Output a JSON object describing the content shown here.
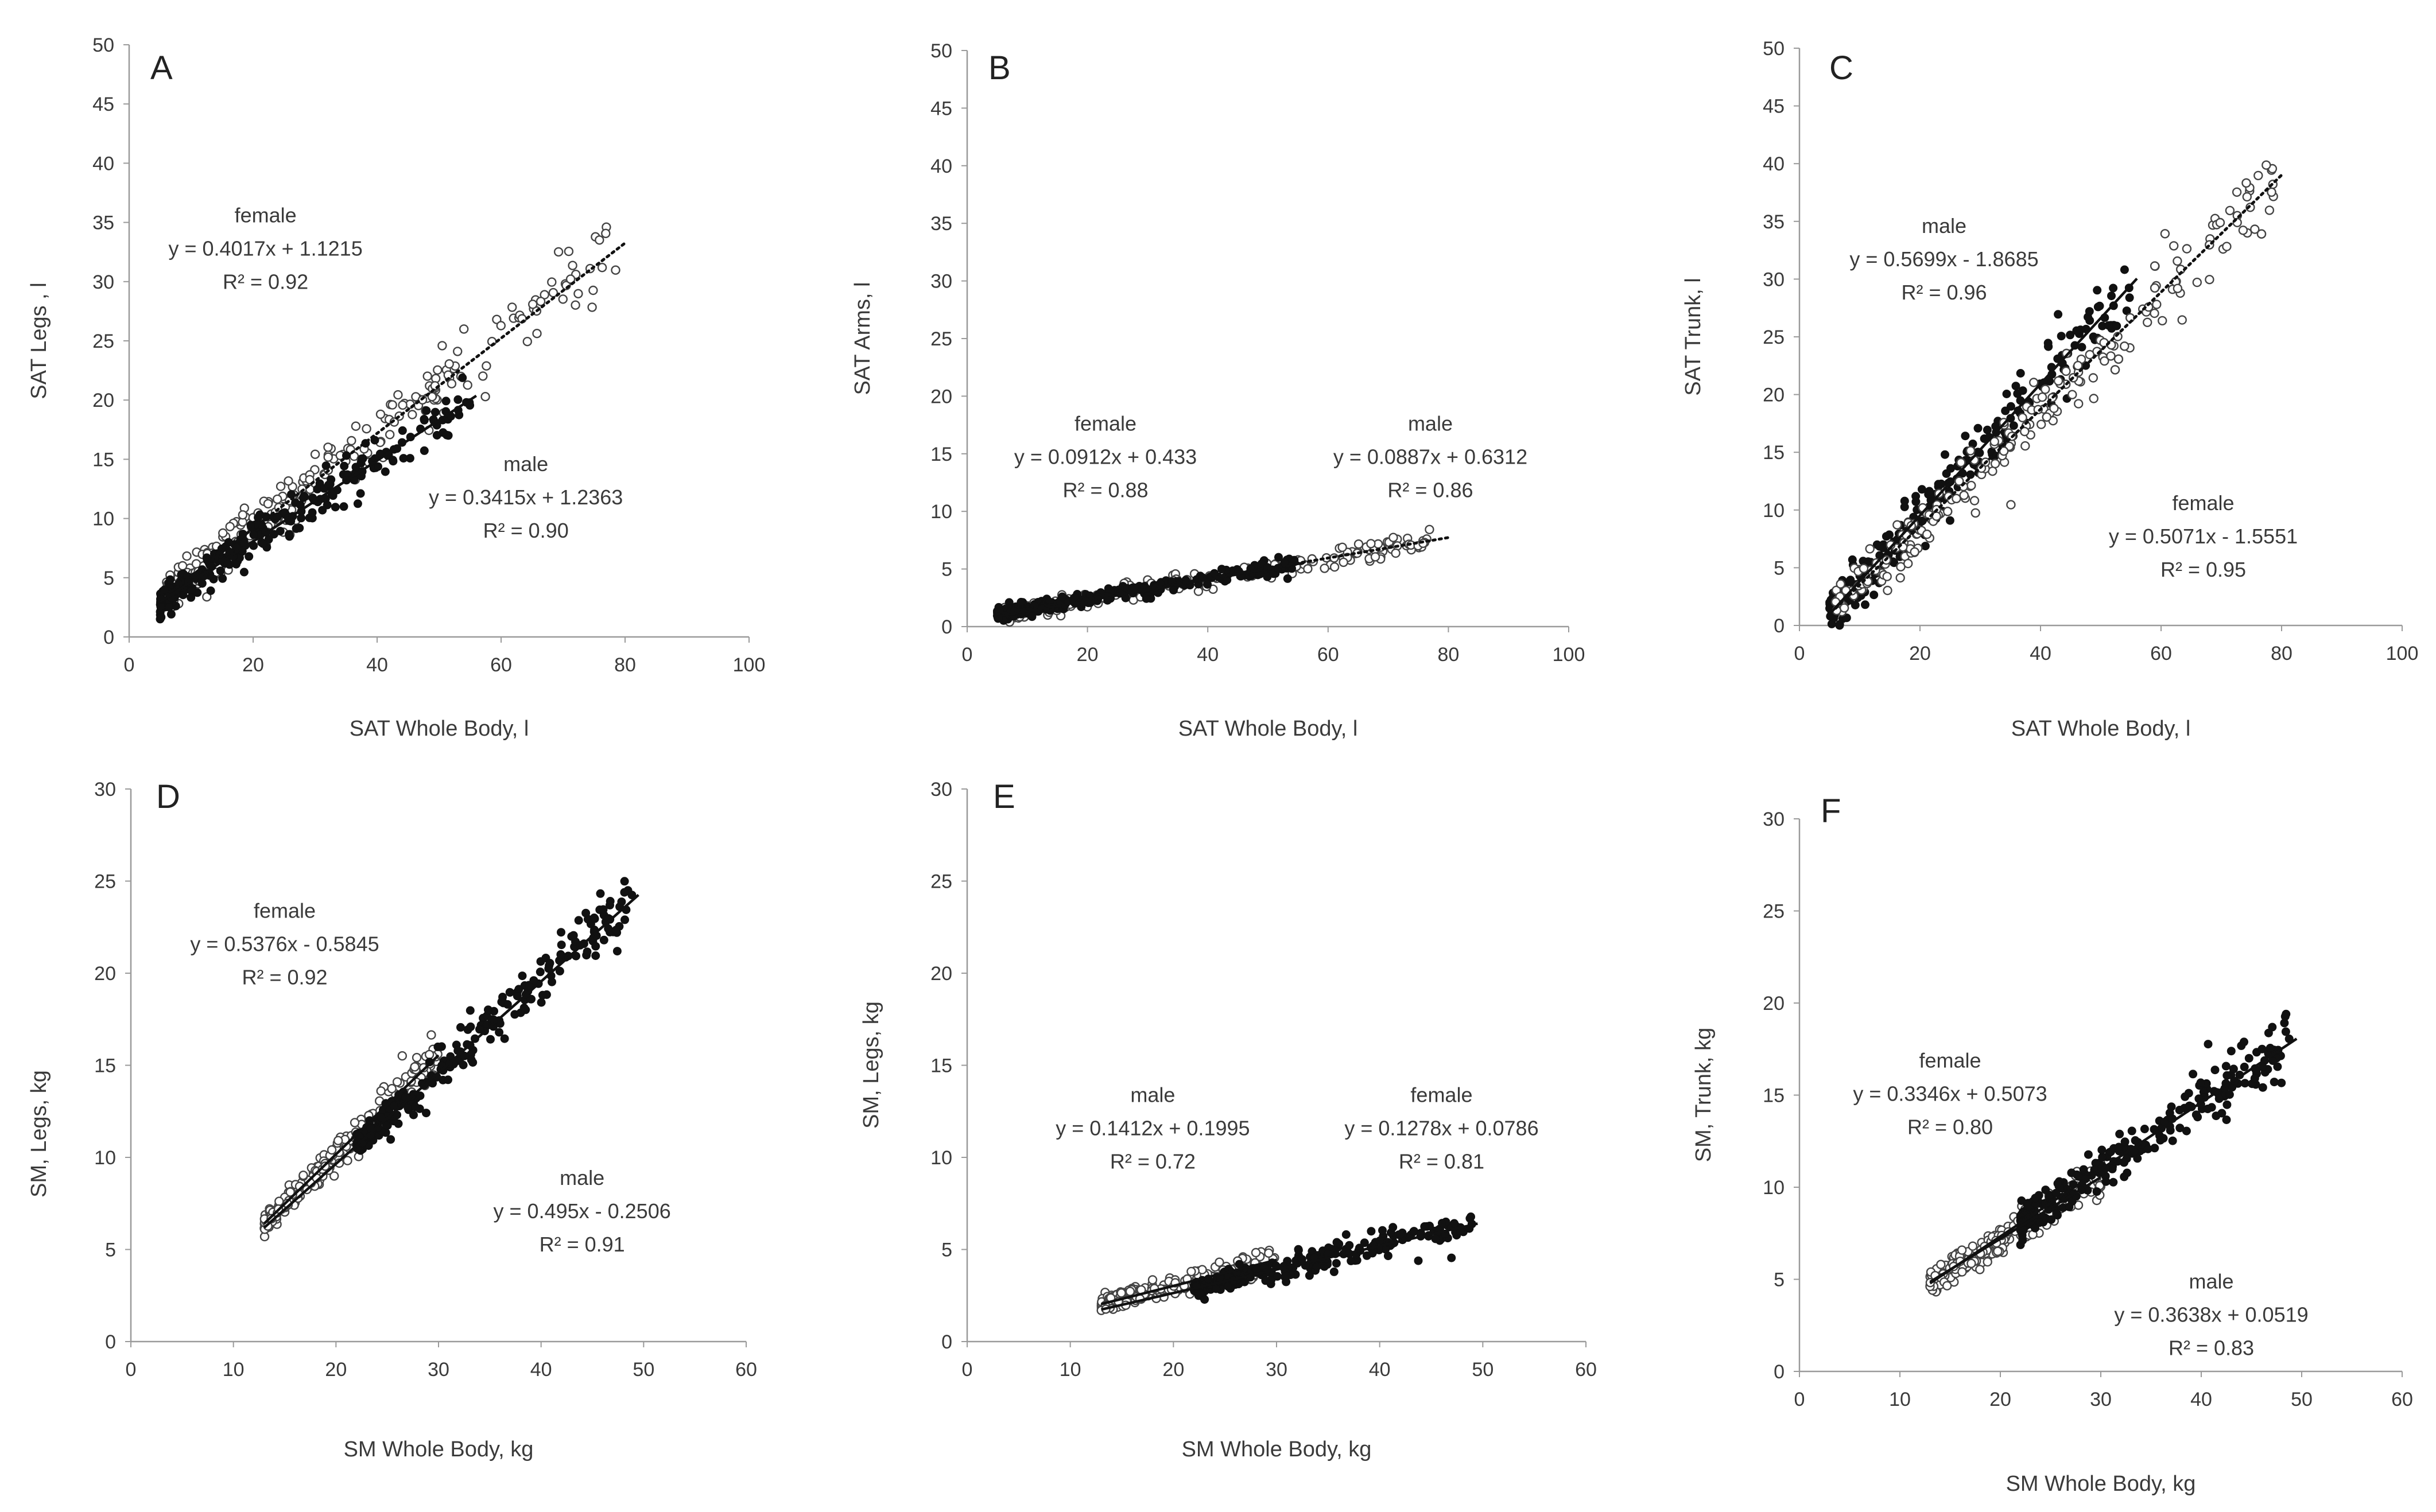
{
  "chart_data": [
    {
      "id": "A",
      "type": "scatter",
      "panel_label": "A",
      "xlabel": "SAT Whole Body, l",
      "ylabel": "SAT Legs , l",
      "xlim": [
        0,
        100
      ],
      "ylim": [
        0,
        50
      ],
      "xstep": 20,
      "ystep": 5,
      "xticks": [
        "0",
        "20",
        "40",
        "60",
        "80",
        "100"
      ],
      "yticks": [
        "0",
        "5",
        "10",
        "15",
        "20",
        "25",
        "30",
        "35",
        "40",
        "45",
        "50"
      ],
      "grid": false,
      "legend": "none",
      "series": [
        {
          "group": "female",
          "marker": "open",
          "slope": 0.4017,
          "intercept": 1.1215,
          "xrange": [
            6,
            79
          ],
          "n": 260,
          "spread": 1.6,
          "line_style": "dotted",
          "line_xrange": [
            6,
            80
          ],
          "annotation": {
            "lines": [
              "female",
              "y = 0.4017x + 1.1215",
              "R² = 0.92"
            ],
            "anchor": [
              22,
              35
            ]
          }
        },
        {
          "group": "male",
          "marker": "filled",
          "slope": 0.3415,
          "intercept": 1.2363,
          "xrange": [
            5,
            55
          ],
          "n": 260,
          "spread": 1.2,
          "line_style": "solid",
          "line_xrange": [
            5,
            56
          ],
          "annotation": {
            "lines": [
              "male",
              "y = 0.3415x + 1.2363",
              "R² = 0.90"
            ],
            "anchor": [
              64,
              14
            ]
          }
        }
      ]
    },
    {
      "id": "B",
      "type": "scatter",
      "panel_label": "B",
      "xlabel": "SAT Whole Body, l",
      "ylabel": "SAT Arms, l",
      "xlim": [
        0,
        100
      ],
      "ylim": [
        0,
        50
      ],
      "xstep": 20,
      "ystep": 5,
      "xticks": [
        "0",
        "20",
        "40",
        "60",
        "80",
        "100"
      ],
      "yticks": [
        "0",
        "5",
        "10",
        "15",
        "20",
        "25",
        "30",
        "35",
        "40",
        "45",
        "50"
      ],
      "grid": false,
      "legend": "none",
      "series": [
        {
          "group": "female",
          "marker": "open",
          "slope": 0.0912,
          "intercept": 0.433,
          "xrange": [
            6,
            79
          ],
          "n": 260,
          "spread": 0.5,
          "line_style": "solid",
          "line_xrange": [
            5,
            56
          ],
          "annotation": {
            "lines": [
              "female",
              "y = 0.0912x + 0.433",
              "R² = 0.88"
            ],
            "anchor": [
              23,
              17
            ]
          }
        },
        {
          "group": "male",
          "marker": "filled",
          "slope": 0.0887,
          "intercept": 0.6312,
          "xrange": [
            5,
            55
          ],
          "n": 260,
          "spread": 0.45,
          "line_style": "dotted",
          "line_xrange": [
            5,
            80
          ],
          "annotation": {
            "lines": [
              "male",
              "y = 0.0887x + 0.6312",
              "R² = 0.86"
            ],
            "anchor": [
              77,
              17
            ]
          }
        }
      ]
    },
    {
      "id": "C",
      "type": "scatter",
      "panel_label": "C",
      "xlabel": "SAT Whole Body, l",
      "ylabel": "SAT Trunk, l",
      "xlim": [
        0,
        100
      ],
      "ylim": [
        0,
        50
      ],
      "xstep": 20,
      "ystep": 5,
      "xticks": [
        "0",
        "20",
        "40",
        "60",
        "80",
        "100"
      ],
      "yticks": [
        "0",
        "5",
        "10",
        "15",
        "20",
        "25",
        "30",
        "35",
        "40",
        "45",
        "50"
      ],
      "grid": false,
      "legend": "none",
      "series": [
        {
          "group": "male",
          "marker": "filled",
          "slope": 0.5699,
          "intercept": -1.8685,
          "xrange": [
            5,
            55
          ],
          "n": 260,
          "spread": 1.8,
          "line_style": "solid",
          "line_xrange": [
            5,
            56
          ],
          "annotation": {
            "lines": [
              "male",
              "y = 0.5699x - 1.8685",
              "R² = 0.96"
            ],
            "anchor": [
              24,
              34
            ]
          }
        },
        {
          "group": "female",
          "marker": "open",
          "slope": 0.5071,
          "intercept": -1.5551,
          "xrange": [
            6,
            79
          ],
          "n": 260,
          "spread": 2.0,
          "line_style": "dotted",
          "line_xrange": [
            6,
            80
          ],
          "annotation": {
            "lines": [
              "female",
              "y = 0.5071x - 1.5551",
              "R² = 0.95"
            ],
            "anchor": [
              67,
              10
            ]
          }
        }
      ]
    },
    {
      "id": "D",
      "type": "scatter",
      "panel_label": "D",
      "xlabel": "SM Whole Body, kg",
      "ylabel": "SM, Legs, kg",
      "xlim": [
        0,
        60
      ],
      "ylim": [
        0,
        30
      ],
      "xstep": 10,
      "ystep": 5,
      "xticks": [
        "0",
        "10",
        "20",
        "30",
        "40",
        "50",
        "60"
      ],
      "yticks": [
        "0",
        "5",
        "10",
        "15",
        "20",
        "25",
        "30"
      ],
      "grid": false,
      "legend": "none",
      "series": [
        {
          "group": "female",
          "marker": "open",
          "slope": 0.5376,
          "intercept": -0.5845,
          "xrange": [
            13,
            30
          ],
          "n": 240,
          "spread": 0.6,
          "line_style": "solid",
          "line_xrange": [
            13,
            30
          ],
          "annotation": {
            "lines": [
              "female",
              "y = 0.5376x - 0.5845",
              "R² = 0.92"
            ],
            "anchor": [
              15,
              23
            ]
          }
        },
        {
          "group": "male",
          "marker": "filled",
          "slope": 0.495,
          "intercept": -0.2506,
          "xrange": [
            22,
            49
          ],
          "n": 260,
          "spread": 0.8,
          "line_style": "solid",
          "line_xrange": [
            13,
            49.5
          ],
          "annotation": {
            "lines": [
              "male",
              "y = 0.495x - 0.2506",
              "R² = 0.91"
            ],
            "anchor": [
              44,
              8.5
            ]
          }
        }
      ]
    },
    {
      "id": "E",
      "type": "scatter",
      "panel_label": "E",
      "xlabel": "SM Whole Body, kg",
      "ylabel": "SM, Legs, kg",
      "xlim": [
        0,
        60
      ],
      "ylim": [
        0,
        30
      ],
      "xstep": 10,
      "ystep": 5,
      "xticks": [
        "0",
        "10",
        "20",
        "30",
        "40",
        "50",
        "60"
      ],
      "yticks": [
        "0",
        "5",
        "10",
        "15",
        "20",
        "25",
        "30"
      ],
      "grid": false,
      "legend": "none",
      "series": [
        {
          "group": "male",
          "marker": "open",
          "slope": 0.1412,
          "intercept": 0.1995,
          "xrange": [
            13,
            30
          ],
          "n": 240,
          "spread": 0.35,
          "line_style": "solid",
          "line_xrange": [
            13,
            30
          ],
          "annotation": {
            "lines": [
              "male",
              "y = 0.1412x + 0.1995",
              "R² = 0.72"
            ],
            "anchor": [
              18,
              13
            ]
          }
        },
        {
          "group": "female",
          "marker": "filled",
          "slope": 0.1278,
          "intercept": 0.0786,
          "xrange": [
            22,
            49
          ],
          "n": 260,
          "spread": 0.45,
          "line_style": "solid",
          "line_xrange": [
            13,
            49.5
          ],
          "annotation": {
            "lines": [
              "female",
              "y = 0.1278x + 0.0786",
              "R² = 0.81"
            ],
            "anchor": [
              46,
              13
            ]
          }
        }
      ]
    },
    {
      "id": "F",
      "type": "scatter",
      "panel_label": "F",
      "xlabel": "SM Whole Body, kg",
      "ylabel": "SM, Trunk, kg",
      "xlim": [
        0,
        60
      ],
      "ylim": [
        0,
        30
      ],
      "xstep": 10,
      "ystep": 5,
      "xticks": [
        "0",
        "10",
        "20",
        "30",
        "40",
        "50",
        "60"
      ],
      "yticks": [
        "0",
        "5",
        "10",
        "15",
        "20",
        "25",
        "30"
      ],
      "grid": false,
      "legend": "none",
      "series": [
        {
          "group": "female",
          "marker": "open",
          "slope": 0.3346,
          "intercept": 0.5073,
          "xrange": [
            13,
            30
          ],
          "n": 240,
          "spread": 0.6,
          "line_style": "solid",
          "line_xrange": [
            13,
            30
          ],
          "annotation": {
            "lines": [
              "female",
              "y = 0.3346x + 0.5073",
              "R² = 0.80"
            ],
            "anchor": [
              15,
              16.5
            ]
          }
        },
        {
          "group": "male",
          "marker": "filled",
          "slope": 0.3638,
          "intercept": 0.0519,
          "xrange": [
            22,
            49
          ],
          "n": 260,
          "spread": 0.9,
          "line_style": "solid",
          "line_xrange": [
            13,
            49.5
          ],
          "annotation": {
            "lines": [
              "male",
              "y = 0.3638x + 0.0519",
              "R² = 0.83"
            ],
            "anchor": [
              41,
              4.5
            ]
          }
        }
      ]
    }
  ]
}
